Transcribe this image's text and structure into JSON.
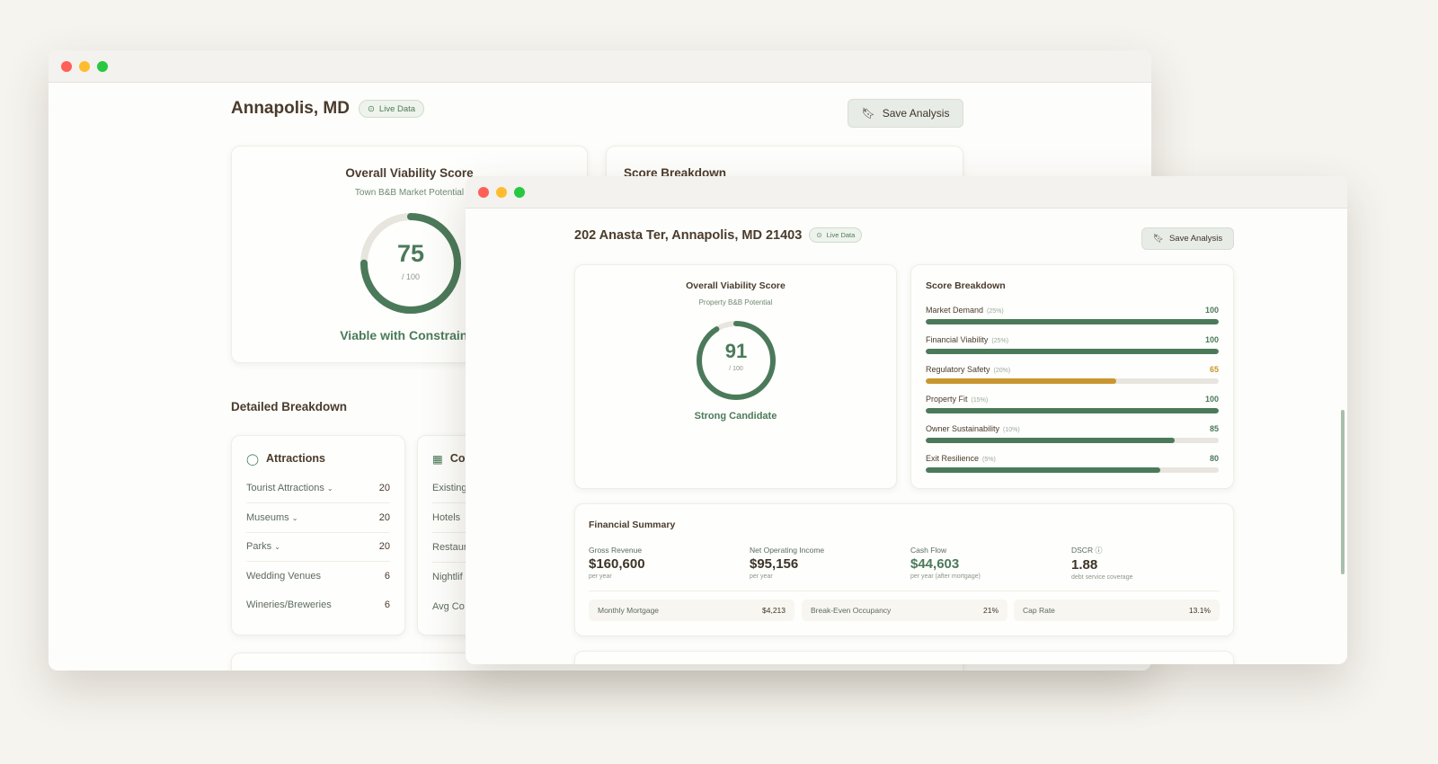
{
  "colors": {
    "accent": "#4b7a5a",
    "warning": "#c9952e",
    "track": "#e8e5df"
  },
  "back": {
    "title": "Annapolis, MD",
    "badge": "Live Data",
    "save_label": "Save Analysis",
    "score": {
      "title": "Overall Viability Score",
      "subtitle": "Town B&B Market Potential",
      "value": 75,
      "max_label": "/ 100",
      "verdict": "Viable with Constraints"
    },
    "breakdown_title": "Score Breakdown",
    "detailed_title": "Detailed Breakdown",
    "attractions": {
      "title": "Attractions",
      "items": [
        {
          "label": "Tourist Attractions",
          "value": "20",
          "expandable": true
        },
        {
          "label": "Museums",
          "value": "20",
          "expandable": true
        },
        {
          "label": "Parks",
          "value": "20",
          "expandable": true
        },
        {
          "label": "Wedding Venues",
          "value": "6",
          "expandable": false
        },
        {
          "label": "Wineries/Breweries",
          "value": "6",
          "expandable": false
        }
      ]
    },
    "second_card": {
      "title": "Co",
      "items": [
        "Existing",
        "Hotels",
        "Restaur",
        "Nightlif",
        "Avg Co"
      ]
    }
  },
  "front": {
    "title": "202 Anasta Ter, Annapolis, MD 21403",
    "badge": "Live Data",
    "save_label": "Save Analysis",
    "score": {
      "title": "Overall Viability Score",
      "subtitle": "Property B&B Potential",
      "value": 91,
      "max_label": "/ 100",
      "verdict": "Strong Candidate"
    },
    "breakdown": {
      "title": "Score Breakdown",
      "items": [
        {
          "label": "Market Demand",
          "weight": "(25%)",
          "value": 100,
          "status": "good"
        },
        {
          "label": "Financial Viability",
          "weight": "(25%)",
          "value": 100,
          "status": "good"
        },
        {
          "label": "Regulatory Safety",
          "weight": "(20%)",
          "value": 65,
          "status": "warning"
        },
        {
          "label": "Property Fit",
          "weight": "(15%)",
          "value": 100,
          "status": "good"
        },
        {
          "label": "Owner Sustainability",
          "weight": "(10%)",
          "value": 85,
          "status": "good"
        },
        {
          "label": "Exit Resilience",
          "weight": "(5%)",
          "value": 80,
          "status": "good"
        }
      ]
    },
    "financial": {
      "title": "Financial Summary",
      "metrics": [
        {
          "label": "Gross Revenue",
          "value": "$160,600",
          "sub": "per year"
        },
        {
          "label": "Net Operating Income",
          "value": "$95,156",
          "sub": "per year"
        },
        {
          "label": "Cash Flow",
          "value": "$44,603",
          "sub": "per year (after mortgage)"
        },
        {
          "label": "DSCR",
          "value": "1.88",
          "sub": "debt service coverage"
        }
      ],
      "mini": [
        {
          "label": "Monthly Mortgage",
          "value": "$4,213"
        },
        {
          "label": "Break-Even Occupancy",
          "value": "21%"
        },
        {
          "label": "Cap Rate",
          "value": "13.1%"
        }
      ]
    }
  }
}
